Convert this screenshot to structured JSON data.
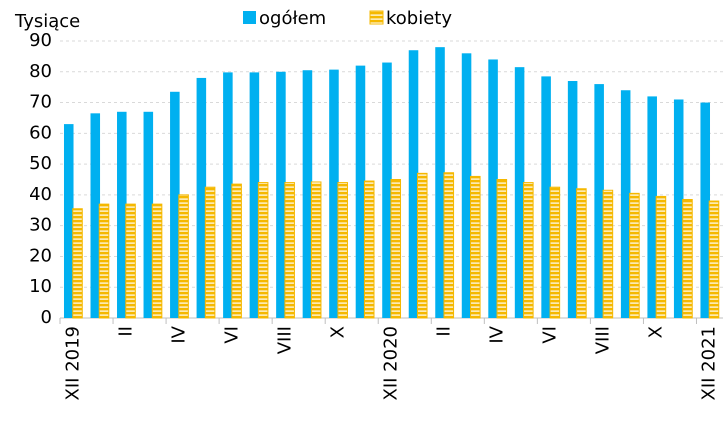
{
  "chart_data": {
    "type": "bar",
    "y_label": "Tysiące",
    "categories": [
      "XII 2019",
      null,
      "II",
      null,
      "IV",
      null,
      "VI",
      null,
      "VIII",
      null,
      "X",
      null,
      "XII 2020",
      null,
      "II",
      null,
      "IV",
      null,
      "VI",
      null,
      "VIII",
      null,
      "X",
      null,
      "XII 2021"
    ],
    "series": [
      {
        "name": "ogółem",
        "color": "#00b0f0",
        "values": [
          63,
          66.5,
          67,
          67,
          73.5,
          78,
          79.8,
          79.8,
          80,
          80.5,
          80.7,
          82,
          83,
          87,
          88,
          86,
          84,
          81.5,
          78.5,
          77,
          76,
          74,
          72,
          71,
          70
        ]
      },
      {
        "name": "kobiety",
        "color": "#f5b800",
        "values": [
          35.5,
          37,
          37,
          37,
          40,
          42.5,
          43.5,
          44,
          44,
          44.2,
          44,
          44.5,
          45,
          47,
          47.2,
          46,
          45,
          44,
          42.5,
          42,
          41.5,
          40.5,
          39.5,
          38.5,
          38
        ]
      }
    ],
    "ylim": [
      0,
      90
    ],
    "yticks": [
      0,
      10,
      20,
      30,
      40,
      50,
      60,
      70,
      80,
      90
    ],
    "grid": true
  }
}
